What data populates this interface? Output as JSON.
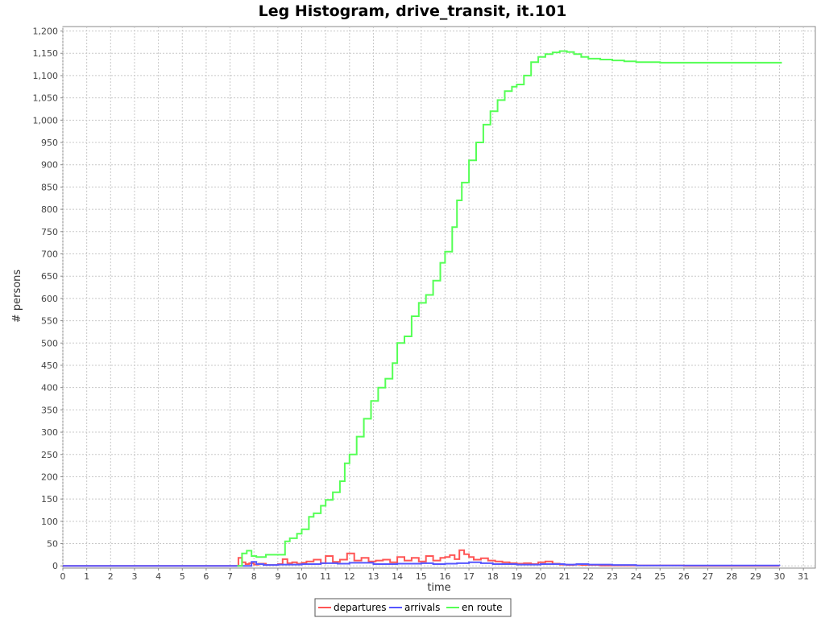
{
  "chart_data": {
    "type": "line",
    "title": "Leg Histogram, drive_transit, it.101",
    "xlabel": "time",
    "ylabel": "# persons",
    "xlim": [
      0,
      31.5
    ],
    "ylim": [
      -5,
      1210
    ],
    "x_ticks": [
      0,
      1,
      2,
      3,
      4,
      5,
      6,
      7,
      8,
      9,
      10,
      11,
      12,
      13,
      14,
      15,
      16,
      17,
      18,
      19,
      20,
      21,
      22,
      23,
      24,
      25,
      26,
      27,
      28,
      29,
      30,
      31
    ],
    "y_ticks": [
      0,
      50,
      100,
      150,
      200,
      250,
      300,
      350,
      400,
      450,
      500,
      550,
      600,
      650,
      700,
      750,
      800,
      850,
      900,
      950,
      1000,
      1050,
      1100,
      1150,
      1200
    ],
    "y_tick_labels": [
      "0",
      "50",
      "100",
      "150",
      "200",
      "250",
      "300",
      "350",
      "400",
      "450",
      "500",
      "550",
      "600",
      "650",
      "700",
      "750",
      "800",
      "850",
      "900",
      "950",
      "1,000",
      "1,050",
      "1,100",
      "1,150",
      "1,200"
    ],
    "grid": true,
    "legend_position": "bottom-center",
    "series": [
      {
        "name": "departures",
        "color": "#ff5555",
        "x": [
          0,
          7.35,
          7.5,
          7.65,
          7.8,
          8,
          8.2,
          8.5,
          9,
          9.2,
          9.4,
          9.6,
          9.8,
          10,
          10.2,
          10.5,
          10.8,
          11,
          11.3,
          11.6,
          11.9,
          12.2,
          12.5,
          12.8,
          13.1,
          13.4,
          13.7,
          14,
          14.3,
          14.6,
          14.9,
          15.2,
          15.5,
          15.8,
          16,
          16.2,
          16.4,
          16.6,
          16.8,
          17,
          17.2,
          17.5,
          17.8,
          18.1,
          18.4,
          18.7,
          19,
          19.3,
          19.6,
          19.9,
          20.2,
          20.5,
          20.8,
          21.1,
          21.4,
          21.7,
          22,
          22.5,
          23,
          24,
          25,
          26,
          30
        ],
        "y": [
          0,
          18,
          8,
          4,
          6,
          3,
          5,
          2,
          4,
          15,
          6,
          8,
          5,
          7,
          10,
          14,
          6,
          22,
          9,
          14,
          28,
          12,
          18,
          10,
          12,
          14,
          8,
          20,
          12,
          18,
          10,
          22,
          12,
          18,
          20,
          24,
          15,
          35,
          26,
          20,
          14,
          17,
          12,
          10,
          8,
          6,
          5,
          6,
          4,
          8,
          10,
          5,
          3,
          2,
          3,
          2,
          2,
          1,
          1,
          1,
          1,
          0,
          0
        ]
      },
      {
        "name": "arrivals",
        "color": "#5555ff",
        "x": [
          0,
          7.9,
          8.1,
          8.4,
          9,
          10,
          10.8,
          11.5,
          12,
          13,
          14,
          15,
          15.5,
          16,
          16.5,
          17,
          17.5,
          18,
          19,
          20,
          21,
          21.5,
          22,
          23,
          24,
          25,
          30
        ],
        "y": [
          0,
          9,
          4,
          2,
          3,
          4,
          6,
          5,
          7,
          4,
          5,
          6,
          4,
          5,
          6,
          8,
          6,
          4,
          3,
          4,
          3,
          4,
          3,
          2,
          1,
          1,
          0
        ]
      },
      {
        "name": "en route",
        "color": "#55ff55",
        "x": [
          7.3,
          7.5,
          7.7,
          7.9,
          8.1,
          8.5,
          9,
          9.3,
          9.5,
          9.8,
          10,
          10.3,
          10.5,
          10.8,
          11,
          11.3,
          11.6,
          11.8,
          12,
          12.3,
          12.6,
          12.9,
          13.2,
          13.5,
          13.8,
          14,
          14.3,
          14.6,
          14.9,
          15.2,
          15.5,
          15.8,
          16,
          16.3,
          16.5,
          16.7,
          17,
          17.3,
          17.6,
          17.9,
          18.2,
          18.5,
          18.8,
          19,
          19.3,
          19.6,
          19.9,
          20.2,
          20.5,
          20.8,
          21.1,
          21.4,
          21.7,
          22,
          22.5,
          23,
          23.5,
          24,
          24.5,
          25,
          26,
          27,
          28,
          29,
          30.1
        ],
        "y": [
          0,
          28,
          34,
          22,
          20,
          25,
          25,
          55,
          62,
          72,
          82,
          110,
          118,
          135,
          148,
          165,
          190,
          230,
          250,
          290,
          330,
          370,
          400,
          420,
          455,
          500,
          515,
          560,
          590,
          608,
          640,
          680,
          705,
          760,
          820,
          860,
          910,
          950,
          990,
          1020,
          1045,
          1065,
          1075,
          1080,
          1100,
          1130,
          1142,
          1148,
          1152,
          1155,
          1153,
          1148,
          1142,
          1138,
          1136,
          1134,
          1132,
          1130,
          1130,
          1129,
          1129,
          1129,
          1129,
          1129,
          1129
        ]
      }
    ]
  }
}
